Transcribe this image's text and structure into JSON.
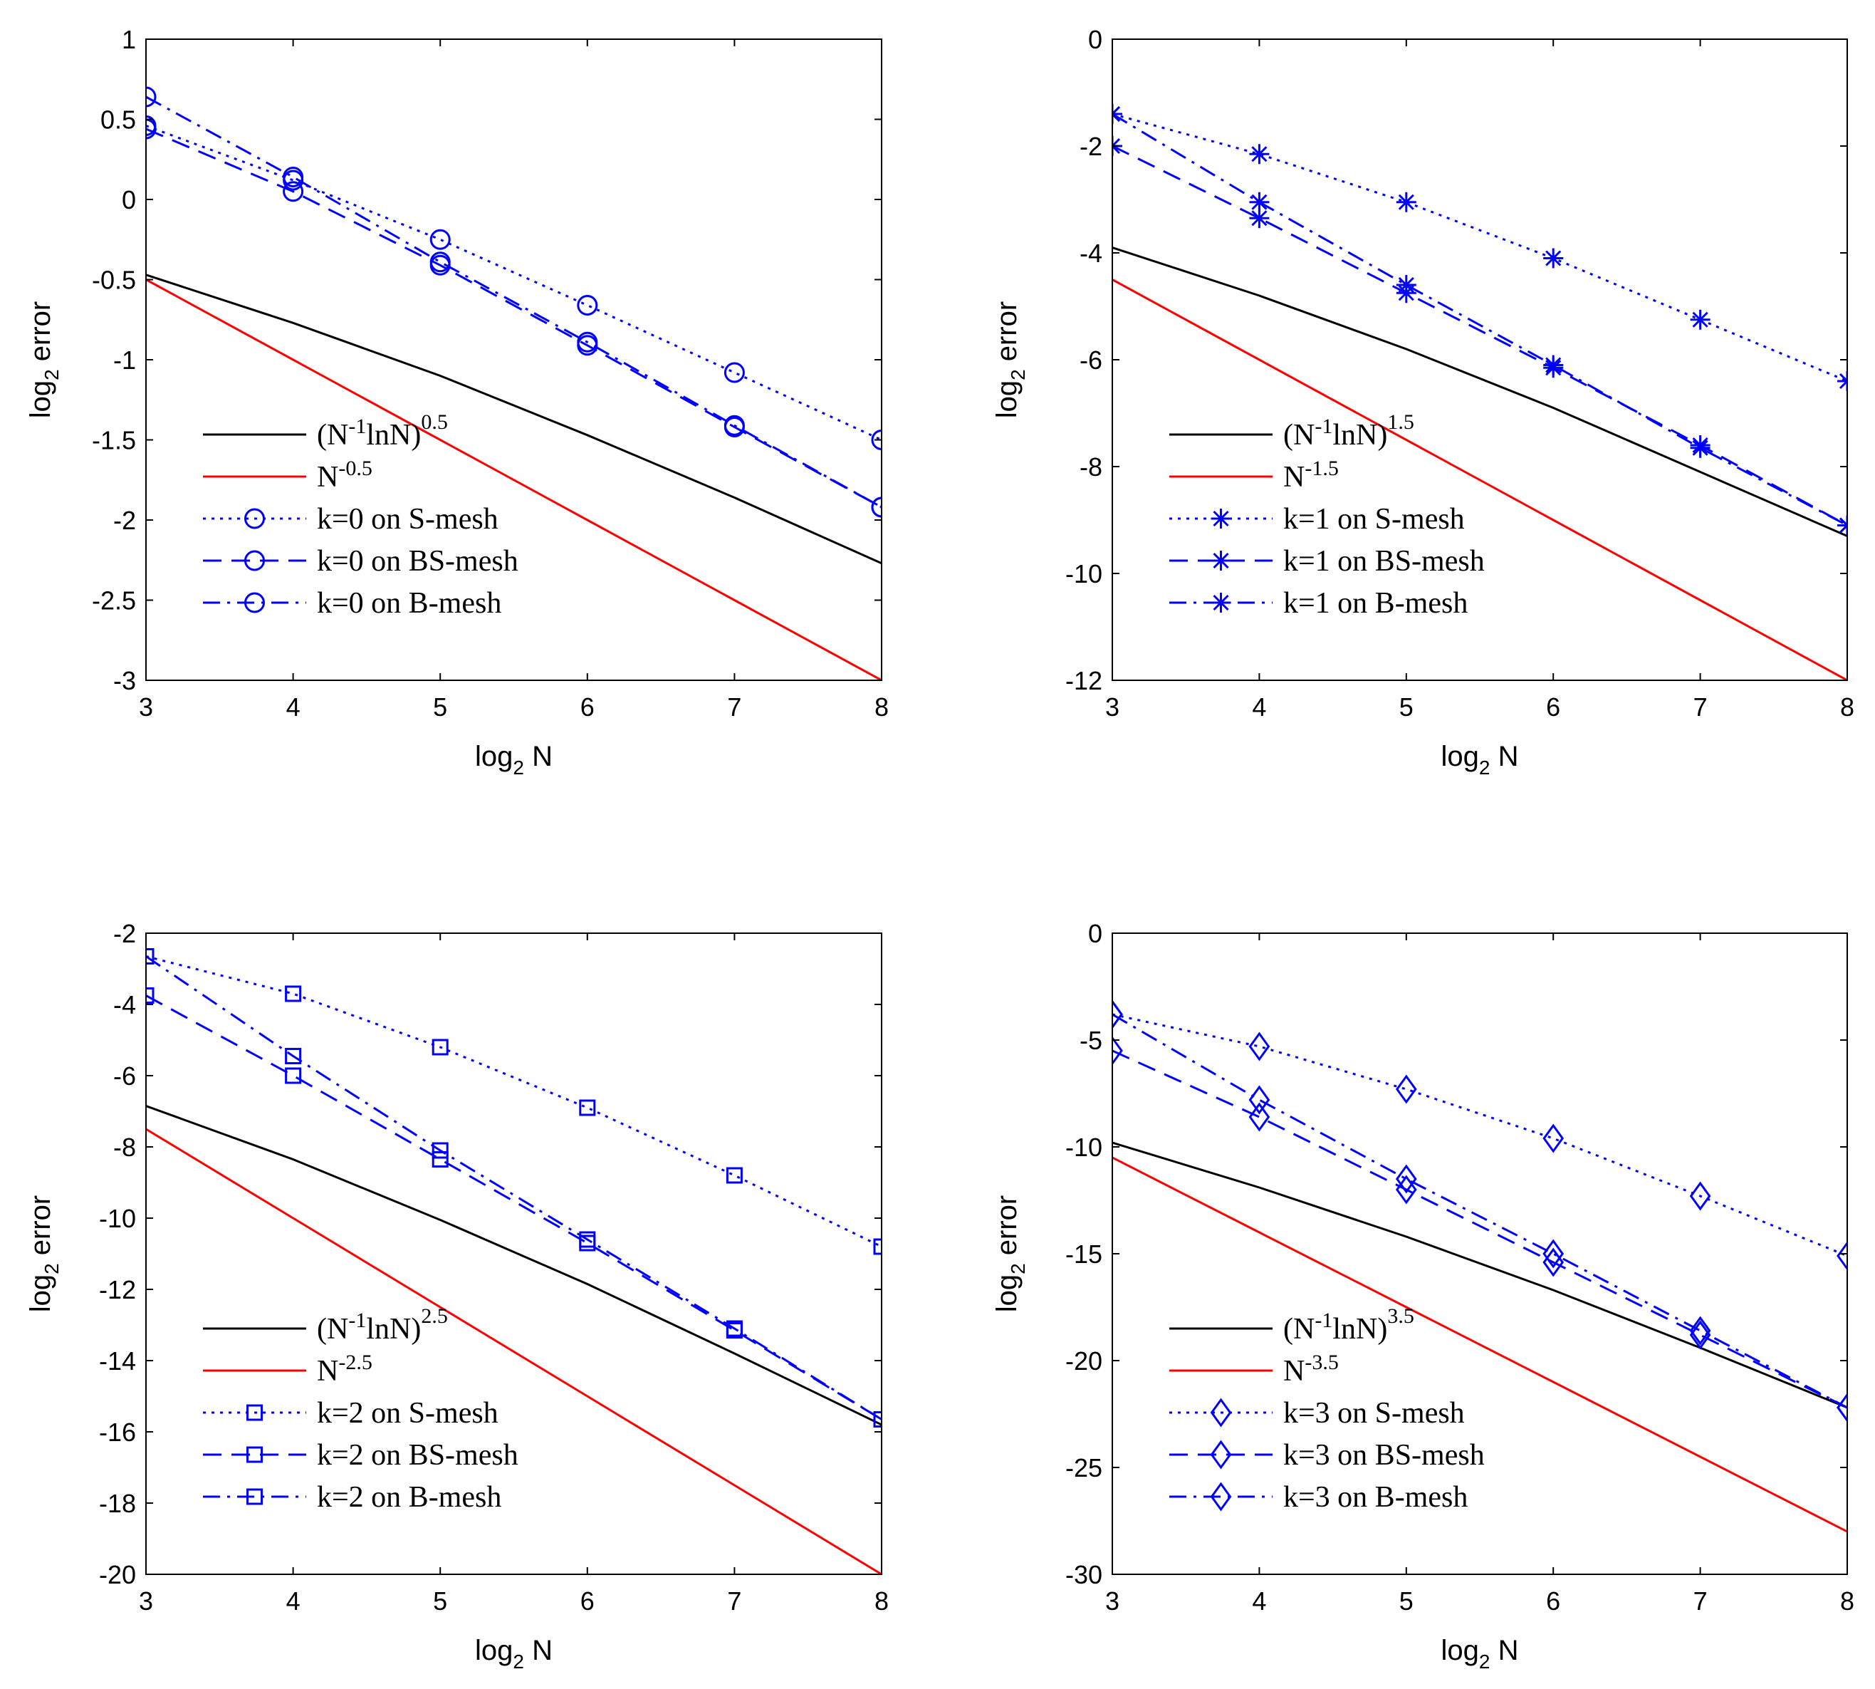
{
  "chart_data": [
    {
      "type": "line",
      "xlabel": "log",
      "xlabel_sub": "2",
      "xlabel_tail": " N",
      "ylabel": "log",
      "ylabel_sub": "2",
      "ylabel_tail": " error",
      "xlim": [
        3,
        8
      ],
      "ylim": [
        -3,
        1
      ],
      "xticks": [
        3,
        4,
        5,
        6,
        7,
        8
      ],
      "yticks": [
        1,
        0.5,
        0,
        -0.5,
        -1,
        -1.5,
        -2,
        -2.5,
        -3
      ],
      "x": [
        3,
        4,
        5,
        6,
        7,
        8
      ],
      "marker": "circle",
      "legend_position": "bottom-left",
      "series": [
        {
          "name": "(N^-1 lnN)^0.5",
          "legend": {
            "base": "(N",
            "exp1": "-1",
            "mid": "lnN)",
            "exp2": "0.5"
          },
          "color": "#000000",
          "style": "solid",
          "values": [
            -0.47,
            -0.77,
            -1.1,
            -1.47,
            -1.86,
            -2.27
          ]
        },
        {
          "name": "N^-0.5",
          "legend": {
            "base": "N",
            "exp1": "-0.5",
            "mid": "",
            "exp2": ""
          },
          "color": "#ff0000",
          "style": "solid",
          "values": [
            -0.5,
            -1.0,
            -1.5,
            -2.0,
            -2.5,
            -3.0
          ]
        },
        {
          "name": "k=0 on S-mesh",
          "legend_label": "k=0 on S-mesh",
          "color": "#0000ff",
          "style": "dotted",
          "values": [
            0.46,
            0.12,
            -0.25,
            -0.66,
            -1.08,
            -1.5
          ]
        },
        {
          "name": "k=0 on BS-mesh",
          "legend_label": "k=0 on BS-mesh",
          "color": "#0000ff",
          "style": "dashed",
          "values": [
            0.44,
            0.05,
            -0.41,
            -0.91,
            -1.42,
            -1.92
          ]
        },
        {
          "name": "k=0 on B-mesh",
          "legend_label": "k=0 on B-mesh",
          "color": "#0000ff",
          "style": "dashdot",
          "values": [
            0.64,
            0.14,
            -0.39,
            -0.89,
            -1.41,
            -1.92
          ]
        }
      ]
    },
    {
      "type": "line",
      "xlabel": "log",
      "xlabel_sub": "2",
      "xlabel_tail": " N",
      "ylabel": "log",
      "ylabel_sub": "2",
      "ylabel_tail": " error",
      "xlim": [
        3,
        8
      ],
      "ylim": [
        -12,
        0
      ],
      "xticks": [
        3,
        4,
        5,
        6,
        7,
        8
      ],
      "yticks": [
        0,
        -2,
        -4,
        -6,
        -8,
        -10,
        -12
      ],
      "x": [
        3,
        4,
        5,
        6,
        7,
        8
      ],
      "marker": "star",
      "legend_position": "bottom-left",
      "series": [
        {
          "name": "(N^-1 lnN)^1.5",
          "legend": {
            "base": "(N",
            "exp1": "-1",
            "mid": "lnN)",
            "exp2": "1.5"
          },
          "color": "#000000",
          "style": "solid",
          "values": [
            -3.9,
            -4.8,
            -5.8,
            -6.9,
            -8.1,
            -9.3
          ]
        },
        {
          "name": "N^-1.5",
          "legend": {
            "base": "N",
            "exp1": "-1.5",
            "mid": "",
            "exp2": ""
          },
          "color": "#ff0000",
          "style": "solid",
          "values": [
            -4.5,
            -6.0,
            -7.5,
            -9.0,
            -10.5,
            -12.0
          ]
        },
        {
          "name": "k=1 on S-mesh",
          "legend_label": "k=1 on S-mesh",
          "color": "#0000ff",
          "style": "dotted",
          "values": [
            -1.4,
            -2.15,
            -3.05,
            -4.1,
            -5.25,
            -6.4
          ]
        },
        {
          "name": "k=1 on BS-mesh",
          "legend_label": "k=1 on BS-mesh",
          "color": "#0000ff",
          "style": "dashed",
          "values": [
            -2.0,
            -3.35,
            -4.75,
            -6.15,
            -7.6,
            -9.1
          ]
        },
        {
          "name": "k=1 on B-mesh",
          "legend_label": "k=1 on B-mesh",
          "color": "#0000ff",
          "style": "dashdot",
          "values": [
            -1.4,
            -3.05,
            -4.6,
            -6.1,
            -7.65,
            -9.1
          ]
        }
      ]
    },
    {
      "type": "line",
      "xlabel": "log",
      "xlabel_sub": "2",
      "xlabel_tail": " N",
      "ylabel": "log",
      "ylabel_sub": "2",
      "ylabel_tail": " error",
      "xlim": [
        3,
        8
      ],
      "ylim": [
        -20,
        -2
      ],
      "xticks": [
        3,
        4,
        5,
        6,
        7,
        8
      ],
      "yticks": [
        -2,
        -4,
        -6,
        -8,
        -10,
        -12,
        -14,
        -16,
        -18,
        -20
      ],
      "x": [
        3,
        4,
        5,
        6,
        7,
        8
      ],
      "marker": "square",
      "legend_position": "bottom-left",
      "series": [
        {
          "name": "(N^-1 lnN)^2.5",
          "legend": {
            "base": "(N",
            "exp1": "-1",
            "mid": "lnN)",
            "exp2": "2.5"
          },
          "color": "#000000",
          "style": "solid",
          "values": [
            -6.85,
            -8.35,
            -10.05,
            -11.85,
            -13.8,
            -15.8
          ]
        },
        {
          "name": "N^-2.5",
          "legend": {
            "base": "N",
            "exp1": "-2.5",
            "mid": "",
            "exp2": ""
          },
          "color": "#ff0000",
          "style": "solid",
          "values": [
            -7.5,
            -10.0,
            -12.5,
            -15.0,
            -17.5,
            -20.0
          ]
        },
        {
          "name": "k=2 on S-mesh",
          "legend_label": "k=2 on S-mesh",
          "color": "#0000ff",
          "style": "dotted",
          "values": [
            -2.65,
            -3.7,
            -5.2,
            -6.9,
            -8.8,
            -10.8
          ]
        },
        {
          "name": "k=2 on BS-mesh",
          "legend_label": "k=2 on BS-mesh",
          "color": "#0000ff",
          "style": "dashed",
          "values": [
            -3.75,
            -6.0,
            -8.35,
            -10.7,
            -13.15,
            -15.65
          ]
        },
        {
          "name": "k=2 on B-mesh",
          "legend_label": "k=2 on B-mesh",
          "color": "#0000ff",
          "style": "dashdot",
          "values": [
            -2.65,
            -5.45,
            -8.1,
            -10.6,
            -13.1,
            -15.65
          ]
        }
      ]
    },
    {
      "type": "line",
      "xlabel": "log",
      "xlabel_sub": "2",
      "xlabel_tail": " N",
      "ylabel": "log",
      "ylabel_sub": "2",
      "ylabel_tail": " error",
      "xlim": [
        3,
        8
      ],
      "ylim": [
        -30,
        0
      ],
      "xticks": [
        3,
        4,
        5,
        6,
        7,
        8
      ],
      "yticks": [
        0,
        -5,
        -10,
        -15,
        -20,
        -25,
        -30
      ],
      "x": [
        3,
        4,
        5,
        6,
        7,
        8
      ],
      "marker": "diamond",
      "legend_position": "bottom-left",
      "series": [
        {
          "name": "(N^-1 lnN)^3.5",
          "legend": {
            "base": "(N",
            "exp1": "-1",
            "mid": "lnN)",
            "exp2": "3.5"
          },
          "color": "#000000",
          "style": "solid",
          "values": [
            -9.8,
            -11.9,
            -14.2,
            -16.7,
            -19.4,
            -22.2
          ]
        },
        {
          "name": "N^-3.5",
          "legend": {
            "base": "N",
            "exp1": "-3.5",
            "mid": "",
            "exp2": ""
          },
          "color": "#ff0000",
          "style": "solid",
          "values": [
            -10.5,
            -14.0,
            -17.5,
            -21.0,
            -24.5,
            -28.0
          ]
        },
        {
          "name": "k=3 on S-mesh",
          "legend_label": "k=3 on S-mesh",
          "color": "#0000ff",
          "style": "dotted",
          "values": [
            -3.8,
            -5.3,
            -7.3,
            -9.6,
            -12.3,
            -15.1
          ]
        },
        {
          "name": "k=3 on BS-mesh",
          "legend_label": "k=3 on BS-mesh",
          "color": "#0000ff",
          "style": "dashed",
          "values": [
            -5.5,
            -8.6,
            -12.0,
            -15.4,
            -18.8,
            -22.2
          ]
        },
        {
          "name": "k=3 on B-mesh",
          "legend_label": "k=3 on B-mesh",
          "color": "#0000ff",
          "style": "dashdot",
          "values": [
            -3.8,
            -7.8,
            -11.5,
            -15.0,
            -18.6,
            -22.2
          ]
        }
      ]
    }
  ]
}
